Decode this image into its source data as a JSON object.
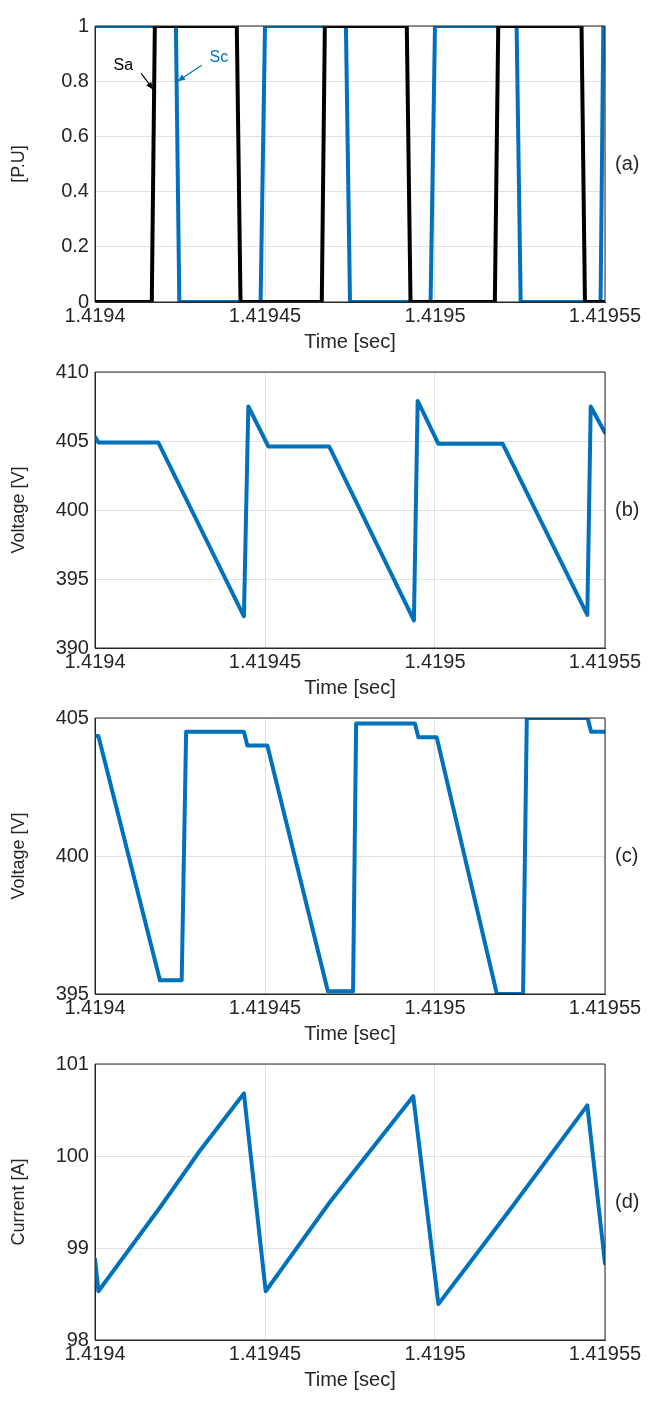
{
  "chart_data": [
    {
      "type": "line",
      "xlabel": "Time [sec]",
      "ylabel": "[P.U]",
      "grid": true,
      "xlim": [
        1.4194,
        1.41955
      ],
      "ylim": [
        0,
        1
      ],
      "xticks": [
        1.4194,
        1.41945,
        1.4195,
        1.41955
      ],
      "yticks": [
        0,
        0.2,
        0.4,
        0.6,
        0.8,
        1
      ],
      "annotations": [
        "(a)",
        {
          "text": "Sa",
          "x": 1.4194171,
          "y": 0.77
        },
        {
          "text": "Sc",
          "x": 1.4194243,
          "y": 0.8
        }
      ],
      "series": [
        {
          "color": "#000000",
          "x": [
            1.4194,
            1.4194167,
            1.4194176,
            1.4194417,
            1.4194428,
            1.4194667,
            1.4194676,
            1.4194917,
            1.4194928,
            1.4195176,
            1.4195186,
            1.4195431,
            1.4195441,
            1.41955
          ],
          "values": [
            0,
            0,
            1,
            1,
            0,
            0,
            1,
            1,
            0,
            0,
            1,
            1,
            0,
            0
          ]
        },
        {
          "color": "#0072bd",
          "x": [
            1.4194,
            1.4194238,
            1.4194248,
            1.4194487,
            1.41945,
            1.4194738,
            1.419475,
            1.4194987,
            1.4195,
            1.419524,
            1.4195252,
            1.4195487,
            1.4195495,
            1.41955
          ],
          "values": [
            1,
            1,
            0,
            0,
            1,
            1,
            0,
            0,
            1,
            1,
            0,
            0,
            1,
            1
          ]
        }
      ]
    },
    {
      "type": "line",
      "xlabel": "Time [sec]",
      "ylabel": "Voltage [V]",
      "grid": true,
      "xlim": [
        1.4194,
        1.41955
      ],
      "ylim": [
        390,
        410
      ],
      "xticks": [
        1.4194,
        1.41945,
        1.4195,
        1.41955
      ],
      "yticks": [
        390,
        395,
        400,
        405,
        410
      ],
      "annotations": [
        "(b)"
      ],
      "series": [
        {
          "color": "#0072bd",
          "x": [
            1.4194,
            1.419401,
            1.4194186,
            1.4194438,
            1.4194451,
            1.419451,
            1.4194689,
            1.4194938,
            1.4194949,
            1.419501,
            1.4195199,
            1.4195448,
            1.4195458,
            1.41955
          ],
          "values": [
            405.3,
            404.9,
            404.9,
            392.3,
            407.5,
            404.6,
            404.6,
            392.0,
            407.9,
            404.8,
            404.8,
            392.4,
            407.5,
            405.6
          ]
        }
      ]
    },
    {
      "type": "line",
      "xlabel": "Time [sec]",
      "ylabel": "Voltage [V]",
      "grid": true,
      "xlim": [
        1.4194,
        1.41955
      ],
      "ylim": [
        395,
        405
      ],
      "xticks": [
        1.4194,
        1.41945,
        1.4195,
        1.41955
      ],
      "yticks": [
        395,
        400,
        405
      ],
      "annotations": [
        "(c)"
      ],
      "series": [
        {
          "color": "#0072bd",
          "x": [
            1.4194,
            1.419401,
            1.4194191,
            1.4194255,
            1.4194268,
            1.4194438,
            1.4194448,
            1.4194507,
            1.4194685,
            1.4194759,
            1.4194768,
            1.4194941,
            1.4194951,
            1.4195005,
            1.4195182,
            1.4195259,
            1.419527,
            1.4195449,
            1.4195459,
            1.41955
          ],
          "values": [
            404.35,
            404.35,
            395.5,
            395.5,
            404.5,
            404.5,
            404.0,
            404.0,
            395.1,
            395.1,
            404.8,
            404.8,
            404.3,
            404.3,
            395.0,
            395.0,
            405.0,
            405.0,
            404.5,
            404.5
          ]
        }
      ]
    },
    {
      "type": "line",
      "xlabel": "Time [sec]",
      "ylabel": "Current [A]",
      "grid": true,
      "xlim": [
        1.4194,
        1.41955
      ],
      "ylim": [
        98,
        101
      ],
      "xticks": [
        1.4194,
        1.41945,
        1.4195,
        1.41955
      ],
      "yticks": [
        98,
        99,
        100,
        101
      ],
      "annotations": [
        "(d)"
      ],
      "series": [
        {
          "color": "#0072bd",
          "x": [
            1.4194,
            1.419401,
            1.4194191,
            1.4194309,
            1.4194438,
            1.4194502,
            1.4194691,
            1.4194936,
            1.419501,
            1.4195201,
            1.4195448,
            1.41955
          ],
          "values": [
            98.88,
            98.53,
            99.44,
            100.06,
            100.68,
            98.53,
            99.5,
            100.65,
            98.39,
            99.32,
            100.55,
            98.83
          ]
        }
      ]
    }
  ]
}
